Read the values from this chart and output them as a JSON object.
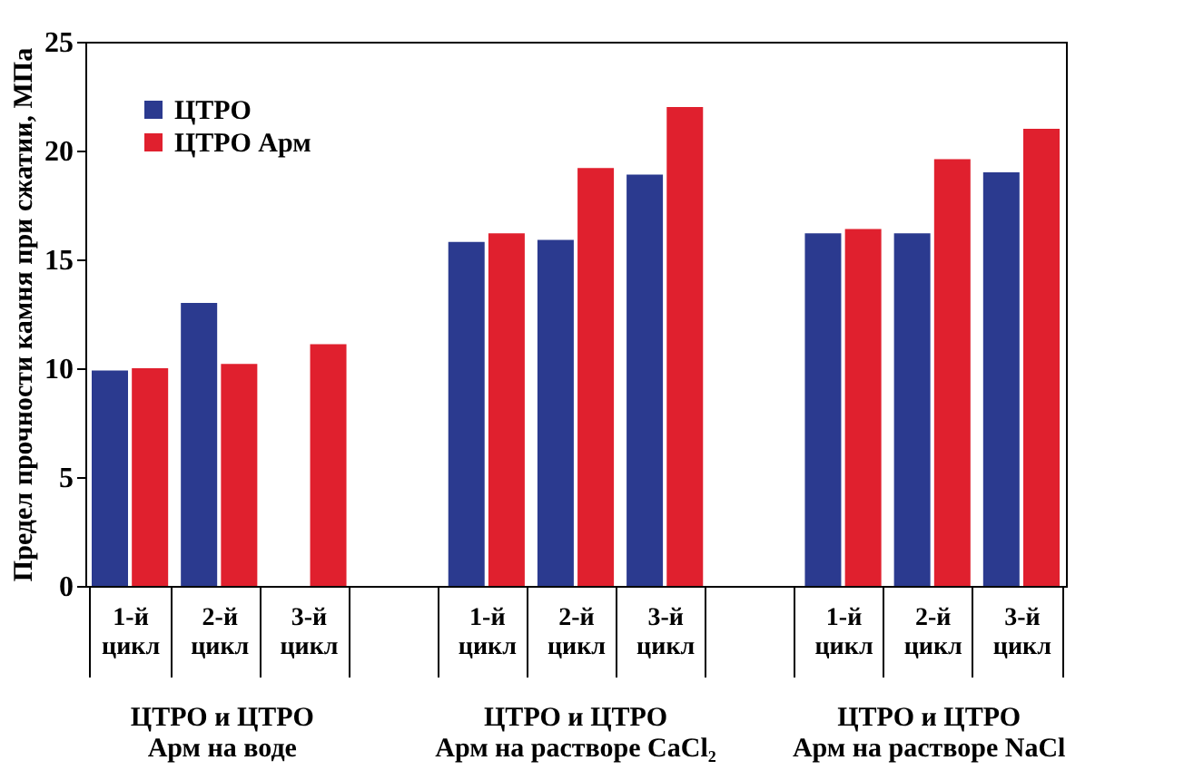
{
  "chart_data": {
    "type": "bar",
    "ylabel": "Предел прочности камня при сжатии, МПа",
    "categories": [
      "1-й цикл",
      "2-й цикл",
      "3-й цикл",
      null,
      "1-й цикл",
      "2-й цикл",
      "3-й цикл",
      null,
      "1-й цикл",
      "2-й цикл",
      "3-й цикл"
    ],
    "series": [
      {
        "name": "ЦТРО",
        "color": "#2b3a8f",
        "values": [
          9.9,
          13.0,
          null,
          null,
          15.8,
          15.9,
          18.9,
          null,
          16.2,
          16.2,
          19.0
        ]
      },
      {
        "name": "ЦТРО Арм",
        "color": "#e0202e",
        "values": [
          10.0,
          10.2,
          11.1,
          null,
          16.2,
          19.2,
          22.0,
          null,
          16.4,
          19.6,
          21.0
        ]
      }
    ],
    "annotations": [
      "ЦТРО и ЦТРО\nАрм на воде",
      "ЦТРО  и ЦТРО\nАрм на растворе CaCl₂",
      "ЦТРО и ЦТРО\nАрм на растворе NaCl"
    ],
    "ylim": [
      0,
      25
    ],
    "yticks": [
      0,
      5,
      10,
      15,
      20,
      25
    ],
    "grid": false,
    "legend": "top left"
  }
}
